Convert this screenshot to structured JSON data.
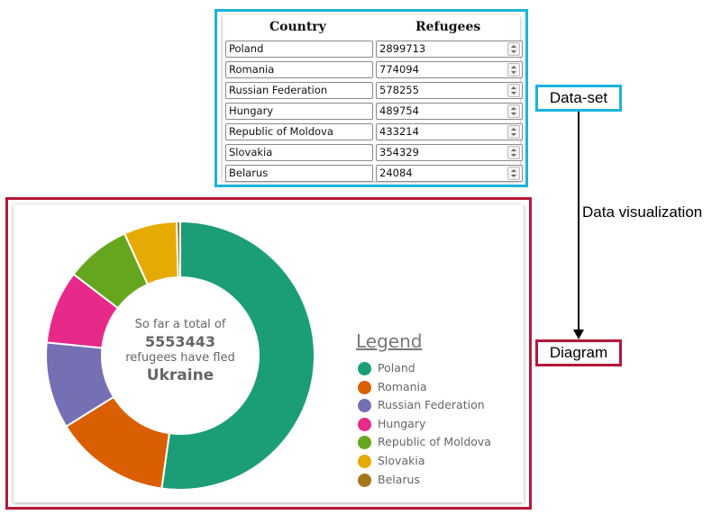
{
  "dataset": {
    "columns": [
      "Country",
      "Refugees"
    ],
    "rows": [
      {
        "country": "Poland",
        "refugees": "2899713"
      },
      {
        "country": "Romania",
        "refugees": "774094"
      },
      {
        "country": "Russian Federation",
        "refugees": "578255"
      },
      {
        "country": "Hungary",
        "refugees": "489754"
      },
      {
        "country": "Republic of Moldova",
        "refugees": "433214"
      },
      {
        "country": "Slovakia",
        "refugees": "354329"
      },
      {
        "country": "Belarus",
        "refugees": "24084"
      }
    ]
  },
  "labels": {
    "dataset": "Data-set",
    "diagram": "Diagram",
    "visualization": "Data visualization"
  },
  "colors": {
    "dataset_border": "#1ab4dc",
    "diagram_border": "#b5173a"
  },
  "chart_data": {
    "type": "pie",
    "donut": true,
    "categories": [
      "Poland",
      "Romania",
      "Russian Federation",
      "Hungary",
      "Republic of Moldova",
      "Slovakia",
      "Belarus"
    ],
    "values": [
      2899713,
      774094,
      578255,
      489754,
      433214,
      354329,
      24084
    ],
    "colors": [
      "#1b9e77",
      "#d95f02",
      "#7570b3",
      "#e7298a",
      "#66a61e",
      "#e6ab02",
      "#a6761d"
    ],
    "legend_title": "Legend",
    "legend_position": "right",
    "center_text": {
      "line1": "So far a total of",
      "total": "5553443",
      "line3": "refugees have fled",
      "country": "Ukraine"
    }
  }
}
